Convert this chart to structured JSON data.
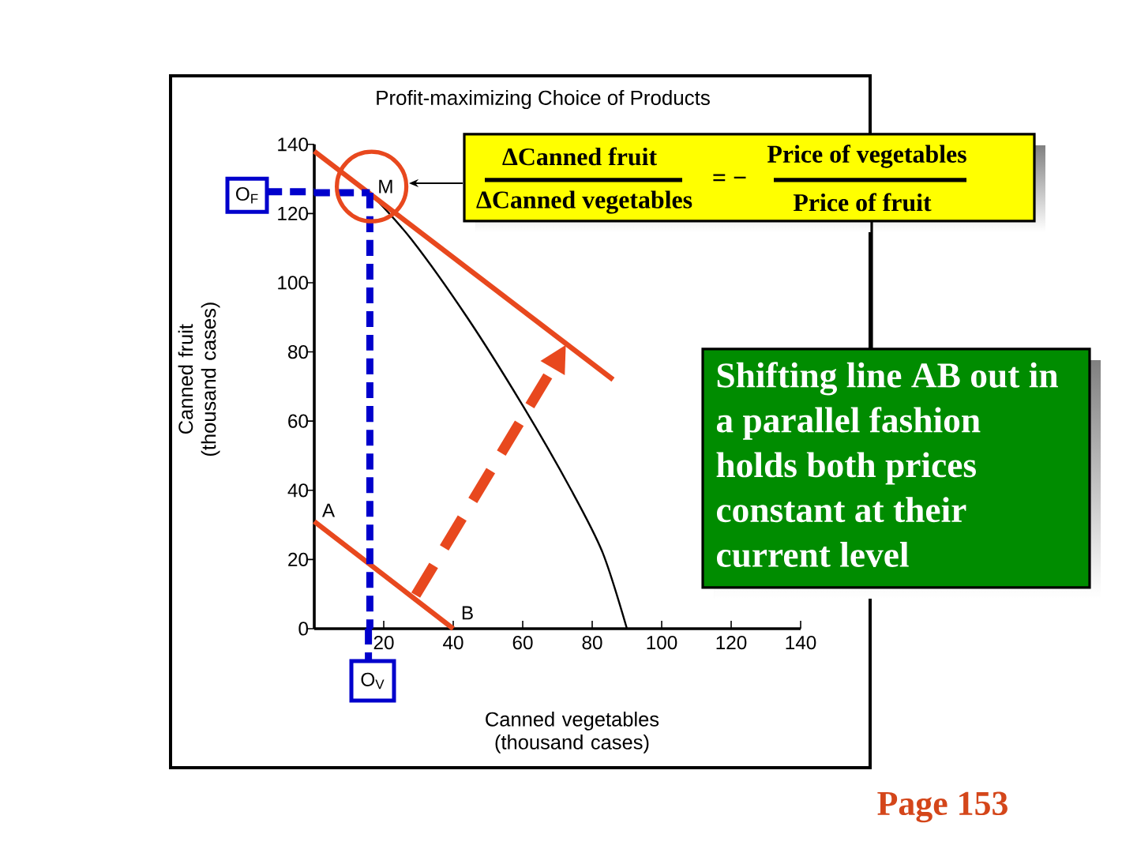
{
  "chart_data": {
    "type": "line",
    "title": "Profit-maximizing Choice of Products",
    "xlabel": "Canned vegetables (thousand cases)",
    "ylabel": "Canned fruit (thousand cases)",
    "xlim": [
      0,
      140
    ],
    "ylim": [
      0,
      140
    ],
    "xticks": [
      20,
      40,
      60,
      80,
      100,
      120,
      140
    ],
    "yticks": [
      0,
      20,
      40,
      60,
      80,
      100,
      120,
      140
    ],
    "marker": "none",
    "series": [
      {
        "color": "#000000",
        "x": [
          16,
          28,
          44,
          60,
          74,
          83,
          90
        ],
        "values": [
          126,
          112.5,
          90,
          64.5,
          40,
          22,
          0
        ]
      },
      {
        "color": "#e8481e",
        "x": [
          0,
          40
        ],
        "values": [
          31,
          0
        ]
      },
      {
        "color": "#e8481e",
        "x": [
          0,
          86
        ],
        "values": [
          138,
          72
        ]
      },
      {
        "color": "#0000cc",
        "line_style": "dashed",
        "x": [
          0,
          16
        ],
        "values": [
          126,
          126
        ]
      },
      {
        "color": "#0000cc",
        "line_style": "dashed",
        "x": [
          16,
          16
        ],
        "values": [
          126,
          0
        ]
      }
    ],
    "annotations": [
      {
        "text": "A",
        "x": 0,
        "y": 31
      },
      {
        "text": "B",
        "x": 40,
        "y": 0
      },
      {
        "text": "M",
        "x": 16,
        "y": 126
      },
      "O$_{F}$",
      "O$_{V}$",
      "ΔCanned fruit",
      "ΔCanned vegetables",
      "= −",
      "Price of vegetables",
      "Price of fruit",
      "Shifting line AB out in a parallel fashion holds both prices constant at their current level",
      "Page 153"
    ]
  }
}
